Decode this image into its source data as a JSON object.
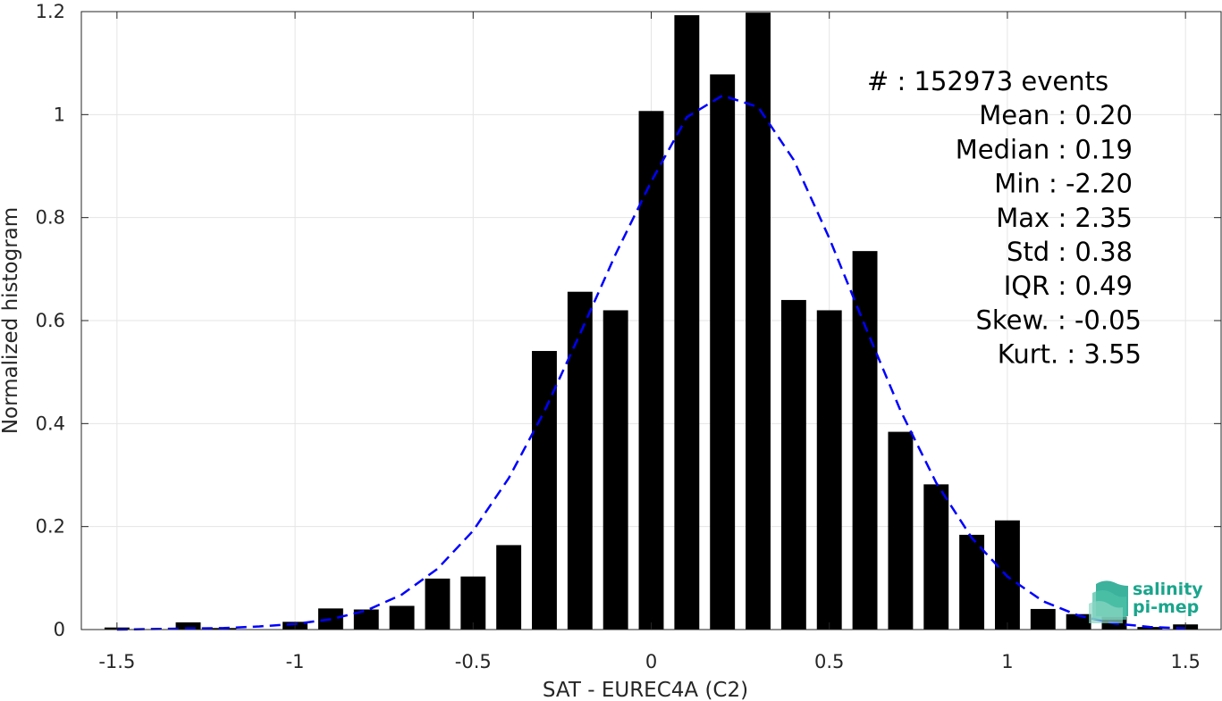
{
  "chart_data": {
    "type": "bar",
    "xlabel": "SAT - EUREC4A (C2)",
    "ylabel": "Normalized histogram",
    "xlim": [
      -1.6,
      1.6
    ],
    "ylim": [
      0,
      1.2
    ],
    "xticks": [
      -1.5,
      -1,
      -0.5,
      0,
      0.5,
      1,
      1.5
    ],
    "xtick_labels": [
      "-1.5",
      "-1",
      "-0.5",
      "0",
      "0.5",
      "1",
      "1.5"
    ],
    "yticks": [
      0,
      0.2,
      0.4,
      0.6,
      0.8,
      1,
      1.2
    ],
    "ytick_labels": [
      "0",
      "0.2",
      "0.4",
      "0.6",
      "0.8",
      "1",
      "1.2"
    ],
    "grid": true,
    "bin_width": 0.1,
    "bar_width_fraction": 0.7,
    "bar_color": "#000000",
    "bins": [
      {
        "x": -1.5,
        "value": 0.004
      },
      {
        "x": -1.3,
        "value": 0.014
      },
      {
        "x": -1.2,
        "value": 0.003
      },
      {
        "x": -1.0,
        "value": 0.015
      },
      {
        "x": -0.9,
        "value": 0.041
      },
      {
        "x": -0.8,
        "value": 0.039
      },
      {
        "x": -0.7,
        "value": 0.046
      },
      {
        "x": -0.6,
        "value": 0.099
      },
      {
        "x": -0.5,
        "value": 0.103
      },
      {
        "x": -0.4,
        "value": 0.164
      },
      {
        "x": -0.3,
        "value": 0.541
      },
      {
        "x": -0.2,
        "value": 0.656
      },
      {
        "x": -0.1,
        "value": 0.62
      },
      {
        "x": 0.0,
        "value": 1.007
      },
      {
        "x": 0.1,
        "value": 1.193
      },
      {
        "x": 0.2,
        "value": 1.078
      },
      {
        "x": 0.3,
        "value": 1.198
      },
      {
        "x": 0.4,
        "value": 0.64
      },
      {
        "x": 0.5,
        "value": 0.62
      },
      {
        "x": 0.6,
        "value": 0.735
      },
      {
        "x": 0.7,
        "value": 0.384
      },
      {
        "x": 0.8,
        "value": 0.282
      },
      {
        "x": 0.9,
        "value": 0.184
      },
      {
        "x": 1.0,
        "value": 0.212
      },
      {
        "x": 1.1,
        "value": 0.04
      },
      {
        "x": 1.2,
        "value": 0.03
      },
      {
        "x": 1.3,
        "value": 0.025
      },
      {
        "x": 1.4,
        "value": 0.005
      },
      {
        "x": 1.5,
        "value": 0.01
      }
    ],
    "fit_curve": {
      "style": "dashed",
      "color": "#0000ff",
      "x": [
        -1.5,
        -1.4,
        -1.3,
        -1.2,
        -1.1,
        -1.0,
        -0.9,
        -0.8,
        -0.7,
        -0.6,
        -0.5,
        -0.4,
        -0.3,
        -0.2,
        -0.1,
        0.0,
        0.1,
        0.2,
        0.3,
        0.4,
        0.5,
        0.6,
        0.7,
        0.8,
        0.9,
        1.0,
        1.1,
        1.2,
        1.3,
        1.4,
        1.5
      ],
      "y": [
        0.0,
        0.001,
        0.002,
        0.003,
        0.006,
        0.011,
        0.02,
        0.037,
        0.068,
        0.118,
        0.192,
        0.294,
        0.424,
        0.574,
        0.729,
        0.87,
        0.995,
        1.037,
        1.015,
        0.912,
        0.76,
        0.59,
        0.425,
        0.285,
        0.178,
        0.103,
        0.055,
        0.027,
        0.012,
        0.005,
        0.002
      ]
    },
    "stats": [
      {
        "label": "#  : 152973 events"
      },
      {
        "label": "Mean : 0.20"
      },
      {
        "label": "Median : 0.19"
      },
      {
        "label": "Min : -2.20"
      },
      {
        "label": "Max : 2.35"
      },
      {
        "label": "Std : 0.38"
      },
      {
        "label": "IQR : 0.49"
      },
      {
        "label": "Skew. : -0.05"
      },
      {
        "label": "Kurt. : 3.55"
      }
    ]
  },
  "logo": {
    "line1": "salinity",
    "line2": "pi-mep",
    "color": "#1aa58c"
  }
}
